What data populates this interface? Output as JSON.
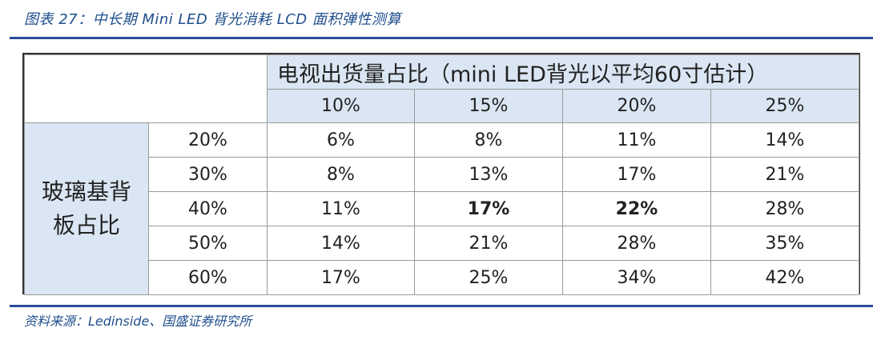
{
  "caption": "图表 27：中长期 Mini LED 背光消耗 LCD 面积弹性测算",
  "table": {
    "column_group_title": "电视出货量占比（mini LED背光以平均60寸估计）",
    "row_group_title_line1": "玻璃基背",
    "row_group_title_line2": "板占比",
    "columns": [
      "10%",
      "15%",
      "20%",
      "25%"
    ],
    "rows": [
      {
        "label": "20%",
        "cells": [
          "6%",
          "8%",
          "11%",
          "14%"
        ]
      },
      {
        "label": "30%",
        "cells": [
          "8%",
          "13%",
          "17%",
          "21%"
        ]
      },
      {
        "label": "40%",
        "cells": [
          "11%",
          "17%",
          "22%",
          "28%"
        ]
      },
      {
        "label": "50%",
        "cells": [
          "14%",
          "21%",
          "28%",
          "35%"
        ]
      },
      {
        "label": "60%",
        "cells": [
          "17%",
          "25%",
          "34%",
          "42%"
        ]
      }
    ],
    "bold_cells": [
      [
        2,
        1
      ],
      [
        2,
        2
      ]
    ]
  },
  "source": "资料来源：Ledinside、国盛证券研究所",
  "colors": {
    "accent": "#2a4d9b",
    "header_fill": "#dae6f3",
    "caption_text": "#1f4e8c"
  }
}
